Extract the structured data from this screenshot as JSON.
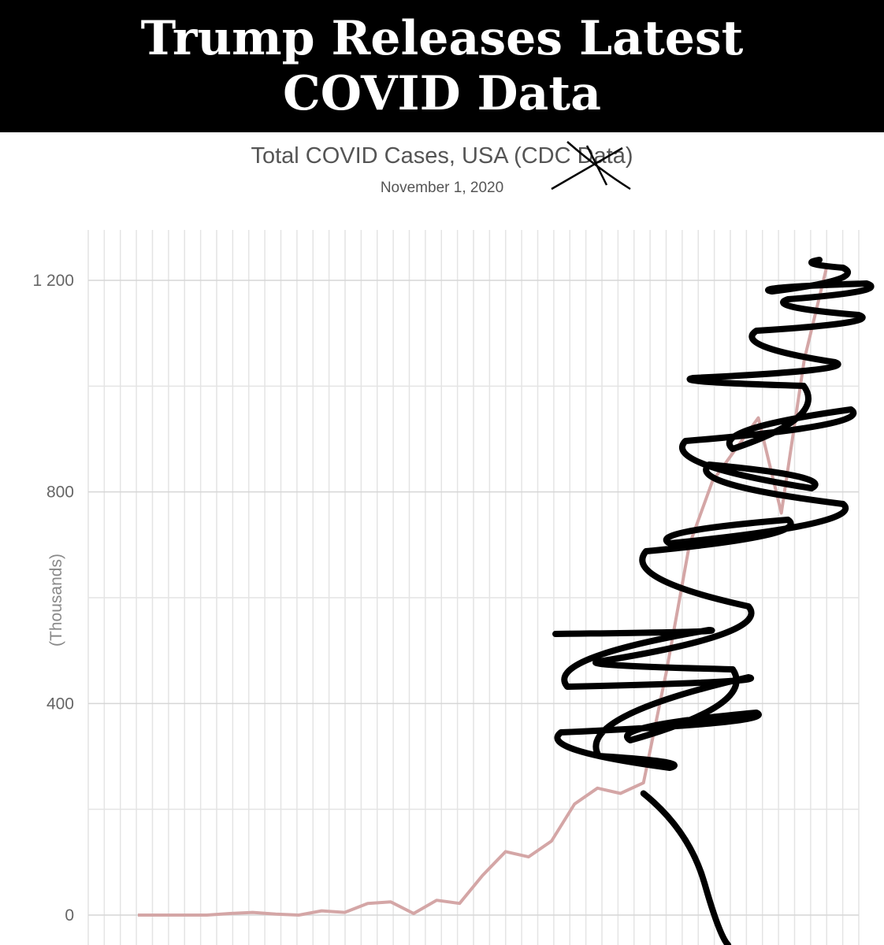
{
  "banner": {
    "line1": "Trump Releases Latest",
    "line2": "COVID Data"
  },
  "chart_data": {
    "type": "line",
    "title": "Total COVID Cases, USA (CDC Data)",
    "subtitle": "November 1, 2020",
    "xlabel": "",
    "ylabel": "(Thousands)",
    "ylim": [
      -10,
      1300
    ],
    "yticks": [
      {
        "value": 0,
        "label": "0"
      },
      {
        "value": 400,
        "label": "400"
      },
      {
        "value": 800,
        "label": "800"
      },
      {
        "value": 1200,
        "label": "1 200"
      }
    ],
    "grid": true,
    "x": [
      0,
      1,
      2,
      3,
      4,
      5,
      6,
      7,
      8,
      9,
      10,
      11,
      12,
      13,
      14,
      15,
      16,
      17,
      18,
      19,
      20,
      21,
      22,
      23,
      24,
      25,
      26,
      27,
      28,
      29,
      30
    ],
    "series": [
      {
        "color": "#d4a6a6",
        "values": [
          0,
          0,
          0,
          0,
          3,
          5,
          2,
          0,
          8,
          5,
          22,
          25,
          3,
          28,
          22,
          75,
          120,
          110,
          140,
          210,
          240,
          230,
          250,
          460,
          700,
          820,
          880,
          940,
          760,
          1050,
          1230
        ]
      }
    ],
    "annotation": {
      "scribble_color": "#000000",
      "downturn": [
        230,
        160,
        60,
        -40
      ]
    }
  }
}
